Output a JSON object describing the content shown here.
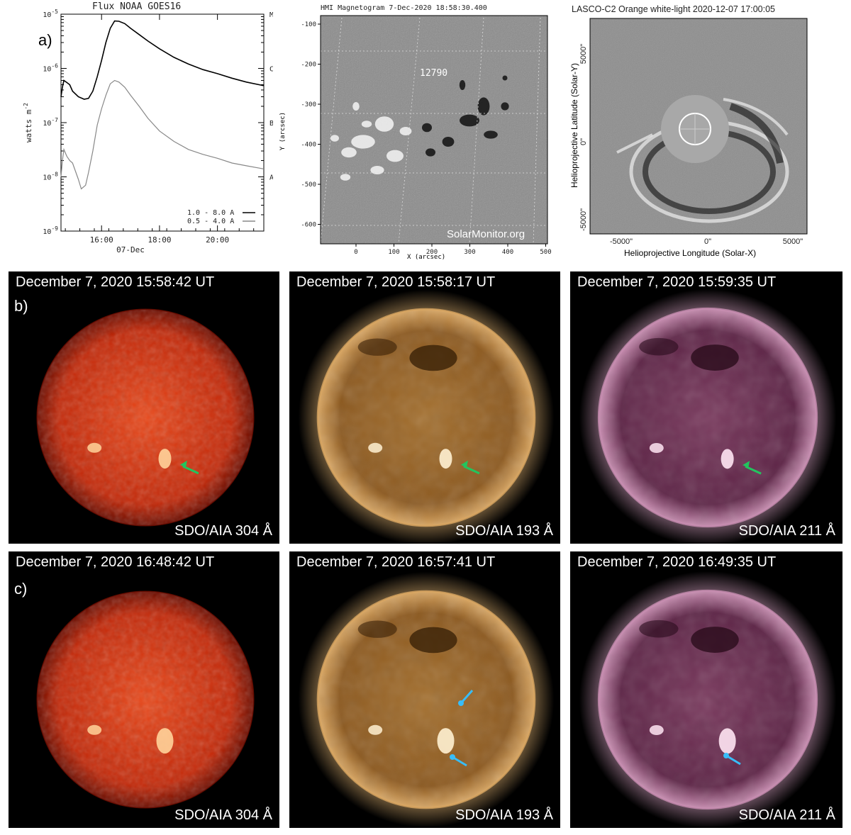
{
  "panel_labels": {
    "a": "a)",
    "b": "b)",
    "c": "c)"
  },
  "chart_data": {
    "type": "line",
    "title": "Flux  NOAA GOES16",
    "ylabel": "watts m-2",
    "xlabel": "07-Dec",
    "yscale": "log",
    "ylim": [
      1e-09,
      1e-05
    ],
    "y_tick_labels": [
      "10-9",
      "10-8",
      "10-7",
      "10-6",
      "10-5"
    ],
    "right_axis_labels": [
      "A",
      "B",
      "C",
      "M"
    ],
    "x_tick_labels": [
      "16:00",
      "18:00",
      "20:00"
    ],
    "x_hours": [
      14.6,
      21.6
    ],
    "legend": [
      "1.0 - 8.0 A",
      "0.5 - 4.0 A"
    ],
    "legend_position": "bottom-right",
    "series": [
      {
        "name": "1.0 - 8.0 A",
        "color": "#000000",
        "points": [
          [
            14.6,
            3e-07
          ],
          [
            14.65,
            4.5e-07
          ],
          [
            14.7,
            6e-07
          ],
          [
            14.8,
            5.5e-07
          ],
          [
            14.9,
            5e-07
          ],
          [
            15.0,
            3.8e-07
          ],
          [
            15.2,
            3e-07
          ],
          [
            15.4,
            2.7e-07
          ],
          [
            15.55,
            2.8e-07
          ],
          [
            15.7,
            3.8e-07
          ],
          [
            15.85,
            7e-07
          ],
          [
            16.0,
            1.4e-06
          ],
          [
            16.15,
            3e-06
          ],
          [
            16.3,
            5.5e-06
          ],
          [
            16.45,
            7.5e-06
          ],
          [
            16.6,
            7.4e-06
          ],
          [
            16.8,
            6.7e-06
          ],
          [
            17.0,
            5.5e-06
          ],
          [
            17.3,
            4.2e-06
          ],
          [
            17.6,
            3.2e-06
          ],
          [
            18.0,
            2.3e-06
          ],
          [
            18.5,
            1.6e-06
          ],
          [
            19.0,
            1.2e-06
          ],
          [
            19.5,
            9.5e-07
          ],
          [
            20.0,
            8e-07
          ],
          [
            20.5,
            6.6e-07
          ],
          [
            21.0,
            5.6e-07
          ],
          [
            21.6,
            4.8e-07
          ]
        ]
      },
      {
        "name": "0.5 - 4.0 A",
        "color": "#888888",
        "points": [
          [
            14.6,
            1e-08
          ],
          [
            14.65,
            2e-08
          ],
          [
            14.7,
            3.2e-08
          ],
          [
            14.8,
            2.4e-08
          ],
          [
            14.9,
            2e-08
          ],
          [
            15.0,
            1.8e-08
          ],
          [
            15.2,
            9e-09
          ],
          [
            15.3,
            6e-09
          ],
          [
            15.45,
            7e-09
          ],
          [
            15.55,
            1.2e-08
          ],
          [
            15.7,
            3e-08
          ],
          [
            15.85,
            9e-08
          ],
          [
            16.0,
            1.8e-07
          ],
          [
            16.15,
            3.2e-07
          ],
          [
            16.3,
            5.2e-07
          ],
          [
            16.45,
            6e-07
          ],
          [
            16.6,
            5.6e-07
          ],
          [
            16.8,
            4.5e-07
          ],
          [
            17.0,
            3.2e-07
          ],
          [
            17.3,
            2e-07
          ],
          [
            17.6,
            1.2e-07
          ],
          [
            18.0,
            7e-08
          ],
          [
            18.5,
            4.5e-08
          ],
          [
            19.0,
            3.2e-08
          ],
          [
            19.5,
            2.6e-08
          ],
          [
            20.0,
            2.2e-08
          ],
          [
            20.5,
            1.8e-08
          ],
          [
            21.0,
            1.6e-08
          ],
          [
            21.6,
            1.4e-08
          ]
        ]
      }
    ]
  },
  "magnetogram": {
    "title": "HMI Magnetogram    7-Dec-2020 18:58:30.400",
    "ylabel": "Y (arcsec)",
    "xlabel": "X (arcsec)",
    "y_ticks": [
      "-100",
      "-200",
      "-300",
      "-400",
      "-500",
      "-600"
    ],
    "x_ticks": [
      "0",
      "100",
      "200",
      "300",
      "400",
      "500"
    ],
    "region_label": "12790",
    "watermark": "SolarMonitor.org"
  },
  "lasco": {
    "title": "LASCO-C2 Orange white-light 2020-12-07 17:00:05",
    "ylabel": "Helioprojective Latitude (Solar-Y)",
    "xlabel": "Helioprojective Longitude (Solar-X)",
    "y_ticks": [
      "5000\"",
      "0\"",
      "-5000\""
    ],
    "x_ticks": [
      "-5000\"",
      "0\"",
      "5000\""
    ]
  },
  "aia_row_b": [
    {
      "timestamp": "December 7, 2020 15:58:42 UT",
      "channel": "SDO/AIA 304 Å",
      "palette": "aia304",
      "arrow_color": "#22c55e"
    },
    {
      "timestamp": "December 7, 2020 15:58:17 UT",
      "channel": "SDO/AIA 193 Å",
      "palette": "aia193",
      "arrow_color": "#22c55e"
    },
    {
      "timestamp": "December 7, 2020 15:59:35 UT",
      "channel": "SDO/AIA 211 Å",
      "palette": "aia211",
      "arrow_color": "#22c55e"
    }
  ],
  "aia_row_c": [
    {
      "timestamp": "December 7, 2020 16:48:42 UT",
      "channel": "SDO/AIA 304 Å",
      "palette": "aia304"
    },
    {
      "timestamp": "December 7, 2020 16:57:41 UT",
      "channel": "SDO/AIA 193 Å",
      "palette": "aia193",
      "arrow_color": "#38bdf8"
    },
    {
      "timestamp": "December 7, 2020 16:49:35 UT",
      "channel": "SDO/AIA 211 Å",
      "palette": "aia211",
      "arrow_color": "#38bdf8"
    }
  ]
}
